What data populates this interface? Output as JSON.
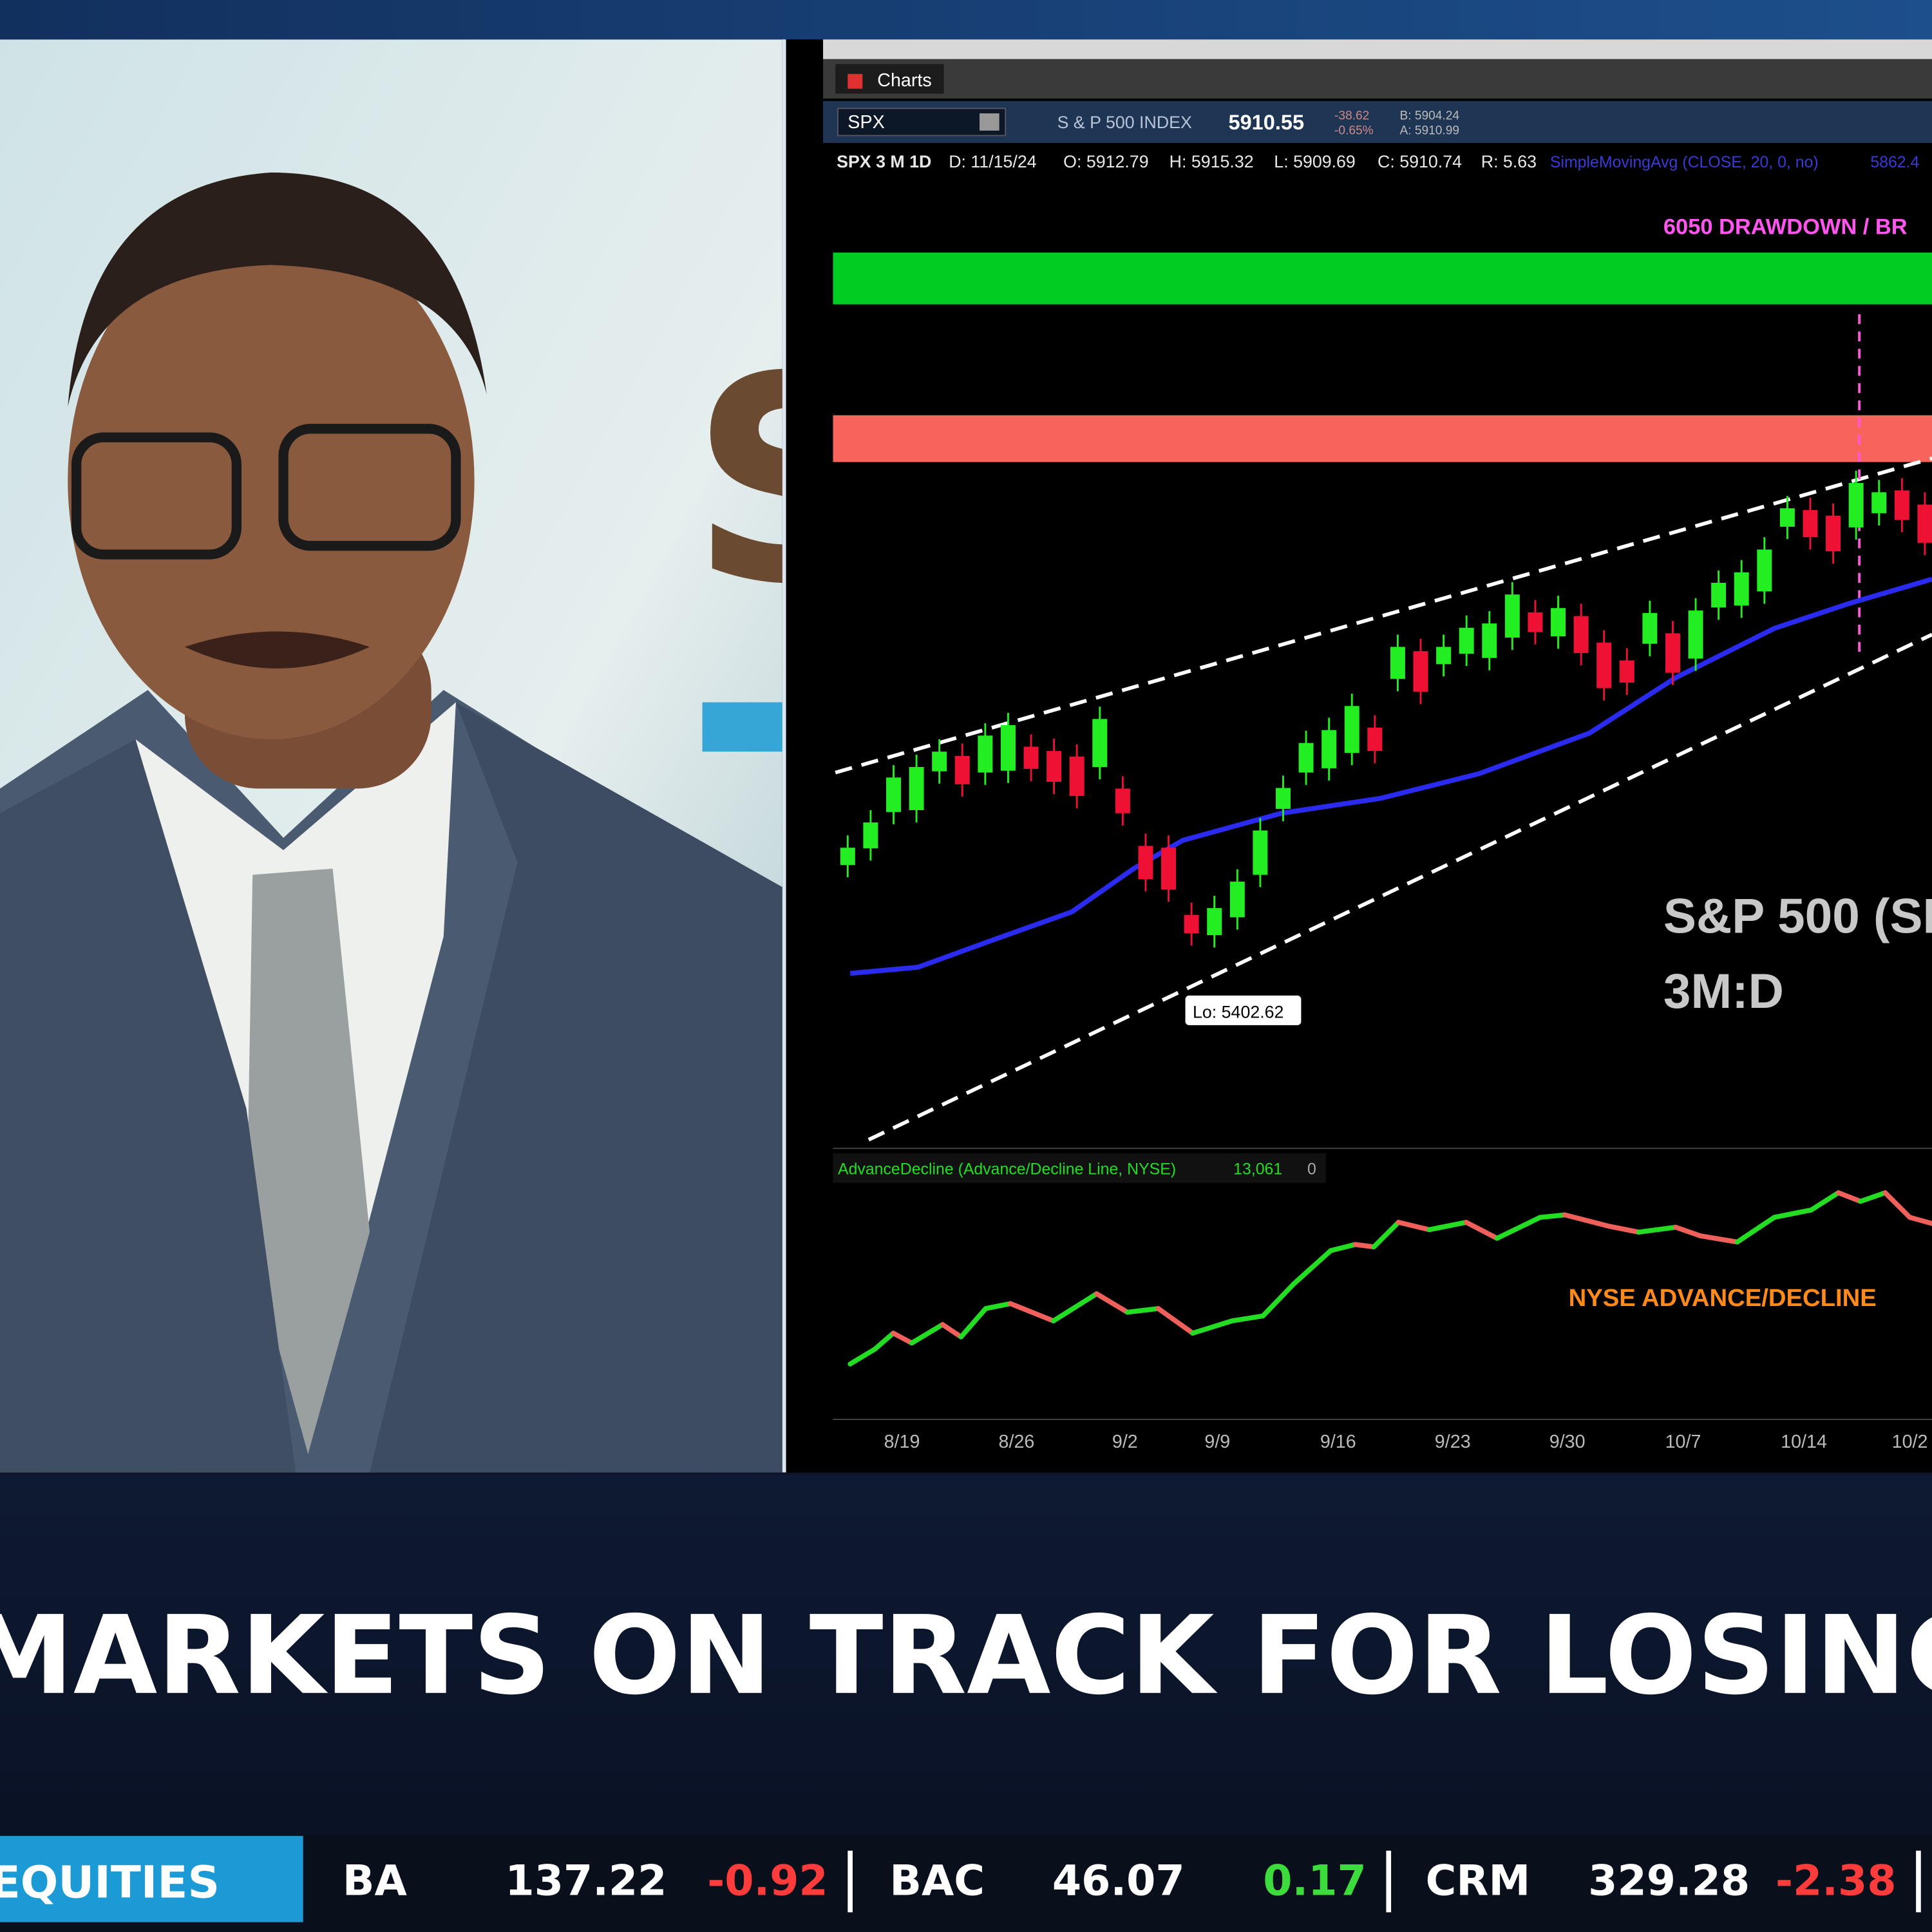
{
  "header": {
    "window_tab": "Charts"
  },
  "quote_bar": {
    "symbol": "SPX",
    "name": "S & P 500 INDEX",
    "last": "5910.55",
    "change": "-38.62",
    "change_pct": "-0.65%",
    "bid": "B: 5904.24",
    "ask": "A: 5910.99"
  },
  "chart_info": {
    "items": [
      "SPX 3 M 1D",
      "D: 11/15/24",
      "O: 5912.79",
      "H: 5915.32",
      "L: 5909.69",
      "C: 5910.74",
      "R: 5.63"
    ],
    "study": "SimpleMovingAvg (CLOSE, 20, 0, no)",
    "study_value": "5862.4"
  },
  "annotations": {
    "top_label": "6050 DRAWDOWN / BR",
    "chart_label_1": "S&P 500 (SP",
    "chart_label_2": "3M:D",
    "low_bubble": "Lo: 5402.62",
    "ad_label": "NYSE ADVANCE/DECLINE"
  },
  "lower_study": {
    "title": "AdvanceDecline (Advance/Decline Line, NYSE)",
    "value": "13,061",
    "zero": "0"
  },
  "x_axis": {
    "labels": [
      "8/19",
      "8/26",
      "9/2",
      "9/9",
      "9/16",
      "9/23",
      "9/30",
      "10/7",
      "10/14",
      "10/2"
    ]
  },
  "headline": "MARKETS ON TRACK FOR LOSING WEEK",
  "ticker": {
    "section": "EQUITIES",
    "items": [
      {
        "symbol": "BA",
        "price": "137.22",
        "change": "-0.92"
      },
      {
        "symbol": "BAC",
        "price": "46.07",
        "change": "0.17"
      },
      {
        "symbol": "CRM",
        "price": "329.28",
        "change": "-2.38"
      }
    ]
  }
}
